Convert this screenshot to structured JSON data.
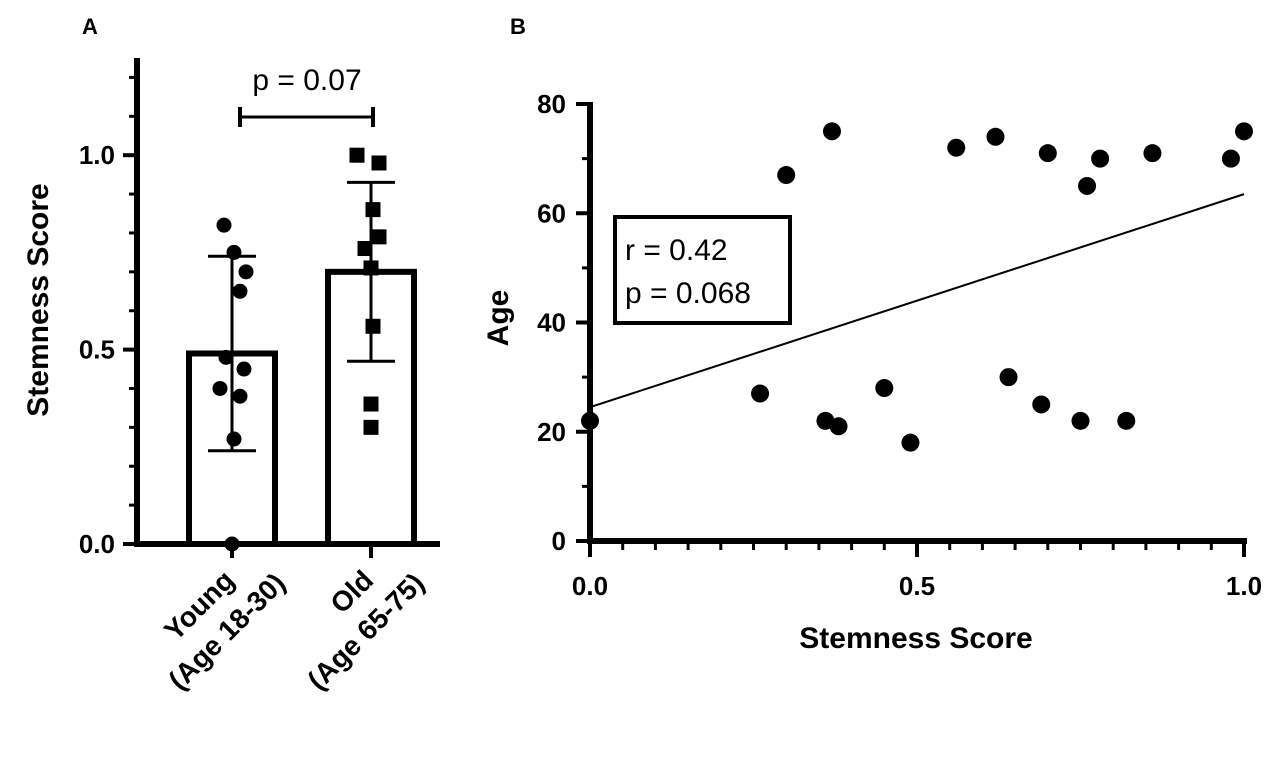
{
  "chart_data": [
    {
      "panel": "A",
      "type": "bar",
      "ylabel": "Stemness Score",
      "ylim": [
        0,
        1.25
      ],
      "yticks": [
        0.0,
        0.5,
        1.0
      ],
      "ytick_labels": [
        "0.0",
        "0.5",
        "1.0"
      ],
      "categories": [
        {
          "line1": "Young",
          "line2": "(Age 18-30)"
        },
        {
          "line1": "Old",
          "line2": "(Age 65-75)"
        }
      ],
      "means": [
        0.49,
        0.7
      ],
      "sd": [
        0.25,
        0.23
      ],
      "points": [
        {
          "marker": "circle",
          "values": [
            0.82,
            0.75,
            0.7,
            0.65,
            0.48,
            0.45,
            0.4,
            0.38,
            0.27,
            0.0
          ]
        },
        {
          "marker": "square",
          "values": [
            1.0,
            0.98,
            0.86,
            0.79,
            0.76,
            0.71,
            0.56,
            0.36,
            0.3
          ]
        }
      ],
      "annotation": "p = 0.07"
    },
    {
      "panel": "B",
      "type": "scatter",
      "xlabel": "Stemness Score",
      "ylabel": "Age",
      "xlim": [
        0,
        1
      ],
      "ylim": [
        0,
        80
      ],
      "xticks": [
        0.0,
        0.5,
        1.0
      ],
      "xtick_labels": [
        "0.0",
        "0.5",
        "1.0"
      ],
      "yticks": [
        0,
        20,
        40,
        60,
        80
      ],
      "ytick_labels": [
        "0",
        "20",
        "40",
        "60",
        "80"
      ],
      "points": [
        {
          "x": 0.0,
          "y": 22
        },
        {
          "x": 0.26,
          "y": 27
        },
        {
          "x": 0.3,
          "y": 67
        },
        {
          "x": 0.36,
          "y": 22
        },
        {
          "x": 0.37,
          "y": 75
        },
        {
          "x": 0.38,
          "y": 21
        },
        {
          "x": 0.45,
          "y": 28
        },
        {
          "x": 0.49,
          "y": 18
        },
        {
          "x": 0.56,
          "y": 72
        },
        {
          "x": 0.62,
          "y": 74
        },
        {
          "x": 0.64,
          "y": 30
        },
        {
          "x": 0.69,
          "y": 25
        },
        {
          "x": 0.7,
          "y": 71
        },
        {
          "x": 0.75,
          "y": 22
        },
        {
          "x": 0.76,
          "y": 65
        },
        {
          "x": 0.78,
          "y": 70
        },
        {
          "x": 0.82,
          "y": 22
        },
        {
          "x": 0.86,
          "y": 71
        },
        {
          "x": 0.98,
          "y": 70
        },
        {
          "x": 1.0,
          "y": 75
        }
      ],
      "fit_line": {
        "y_at_x0": 24.5,
        "y_at_x1": 63.5
      },
      "annotation": {
        "line1": "r = 0.42",
        "line2": "p = 0.068"
      }
    }
  ]
}
